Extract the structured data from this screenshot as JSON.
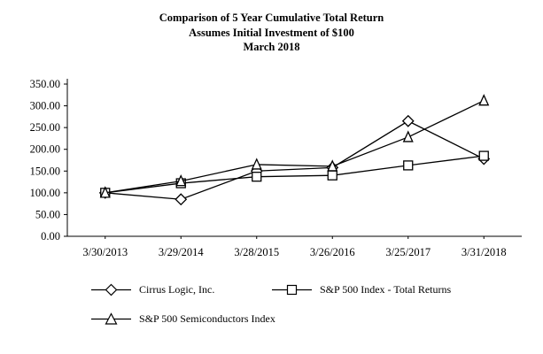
{
  "title": {
    "line1": "Comparison of 5 Year Cumulative Total Return",
    "line2": "Assumes Initial Investment of $100",
    "line3": "March 2018"
  },
  "chart_data": {
    "type": "line",
    "title": "Comparison of 5 Year Cumulative Total Return Assumes Initial Investment of $100 March 2018",
    "categories": [
      "3/30/2013",
      "3/29/2014",
      "3/28/2015",
      "3/26/2016",
      "3/25/2017",
      "3/31/2018"
    ],
    "series": [
      {
        "name": "Cirrus Logic, Inc.",
        "marker": "diamond",
        "values": [
          100.0,
          85.0,
          150.0,
          158.0,
          265.0,
          178.0
        ]
      },
      {
        "name": "S&P 500 Index - Total Returns",
        "marker": "square",
        "values": [
          100.0,
          122.0,
          137.0,
          140.0,
          163.0,
          185.0
        ]
      },
      {
        "name": "S&P 500 Semiconductors Index",
        "marker": "triangle",
        "values": [
          100.0,
          127.0,
          165.0,
          161.0,
          228.0,
          312.0
        ]
      }
    ],
    "xlabel": "",
    "ylabel": "",
    "ylim": [
      0,
      350
    ],
    "ytick_step": 50,
    "y_tick_format": "two-decimals",
    "grid": false,
    "legend_position": "bottom",
    "line_color": "#000000",
    "marker_fill": "#ffffff",
    "background": "#ffffff"
  },
  "legend": {
    "items": [
      {
        "label": "Cirrus Logic, Inc.",
        "marker": "diamond"
      },
      {
        "label": "S&P 500 Index - Total Returns",
        "marker": "square"
      },
      {
        "label": "S&P 500 Semiconductors Index",
        "marker": "triangle"
      }
    ]
  }
}
